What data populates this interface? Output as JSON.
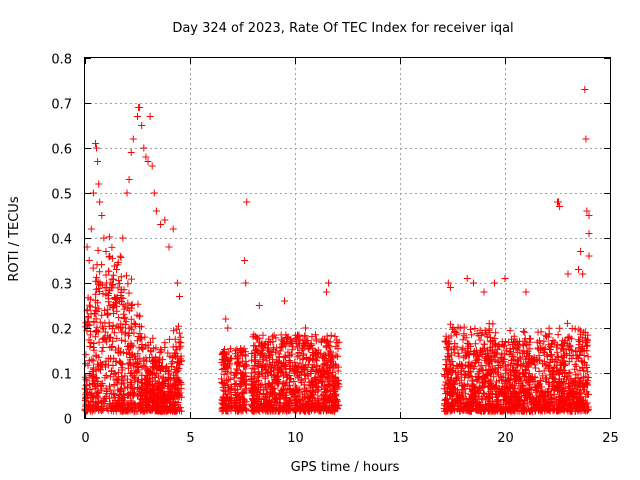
{
  "chart_data": {
    "type": "scatter",
    "title": "Day 324 of 2023, Rate Of TEC Index for receiver iqal",
    "xlabel": "GPS time / hours",
    "ylabel": "ROTI / TECUs",
    "xlim": [
      0,
      25
    ],
    "ylim": [
      0,
      0.8
    ],
    "x_ticks": [
      "0",
      "5",
      "10",
      "15",
      "20",
      "25"
    ],
    "y_ticks": [
      "0",
      "0.1",
      "0.2",
      "0.3",
      "0.4",
      "0.5",
      "0.6",
      "0.7",
      "0.8"
    ],
    "grid": true,
    "marker": "+",
    "color": "#ff0000",
    "series": [
      {
        "data_segments_hours": [
          [
            0,
            4.6
          ],
          [
            6.5,
            7.0
          ],
          [
            7.1,
            7.7
          ],
          [
            7.9,
            12.1
          ],
          [
            17.1,
            24.0
          ]
        ],
        "points": [
          [
            0.1,
            0.38
          ],
          [
            0.2,
            0.35
          ],
          [
            0.3,
            0.42
          ],
          [
            0.4,
            0.5
          ],
          [
            0.5,
            0.61
          ],
          [
            0.55,
            0.6
          ],
          [
            0.6,
            0.57
          ],
          [
            0.65,
            0.52
          ],
          [
            0.7,
            0.48
          ],
          [
            0.8,
            0.45
          ],
          [
            0.9,
            0.4
          ],
          [
            1.0,
            0.37
          ],
          [
            1.2,
            0.3
          ],
          [
            1.5,
            0.33
          ],
          [
            1.8,
            0.4
          ],
          [
            2.0,
            0.5
          ],
          [
            2.1,
            0.53
          ],
          [
            2.2,
            0.59
          ],
          [
            2.3,
            0.62
          ],
          [
            2.5,
            0.67
          ],
          [
            2.55,
            0.69
          ],
          [
            2.6,
            0.69
          ],
          [
            2.7,
            0.65
          ],
          [
            2.8,
            0.6
          ],
          [
            2.9,
            0.58
          ],
          [
            3.0,
            0.57
          ],
          [
            3.1,
            0.67
          ],
          [
            3.2,
            0.56
          ],
          [
            3.3,
            0.5
          ],
          [
            3.4,
            0.46
          ],
          [
            3.6,
            0.43
          ],
          [
            3.8,
            0.44
          ],
          [
            4.0,
            0.38
          ],
          [
            4.2,
            0.42
          ],
          [
            4.4,
            0.3
          ],
          [
            4.5,
            0.27
          ],
          [
            6.7,
            0.22
          ],
          [
            6.8,
            0.2
          ],
          [
            7.6,
            0.35
          ],
          [
            7.65,
            0.3
          ],
          [
            7.7,
            0.48
          ],
          [
            8.3,
            0.25
          ],
          [
            9.5,
            0.26
          ],
          [
            10.5,
            0.2
          ],
          [
            11.5,
            0.28
          ],
          [
            11.6,
            0.3
          ],
          [
            17.3,
            0.3
          ],
          [
            17.4,
            0.29
          ],
          [
            18.2,
            0.31
          ],
          [
            18.5,
            0.3
          ],
          [
            19.0,
            0.28
          ],
          [
            19.5,
            0.3
          ],
          [
            20.0,
            0.31
          ],
          [
            21.0,
            0.28
          ],
          [
            22.5,
            0.48
          ],
          [
            22.55,
            0.48
          ],
          [
            22.6,
            0.47
          ],
          [
            23.0,
            0.32
          ],
          [
            23.5,
            0.33
          ],
          [
            23.6,
            0.37
          ],
          [
            23.7,
            0.32
          ],
          [
            23.8,
            0.73
          ],
          [
            23.85,
            0.62
          ],
          [
            23.9,
            0.46
          ],
          [
            24.0,
            0.45
          ],
          [
            24.0,
            0.41
          ],
          [
            24.0,
            0.36
          ]
        ]
      }
    ]
  }
}
